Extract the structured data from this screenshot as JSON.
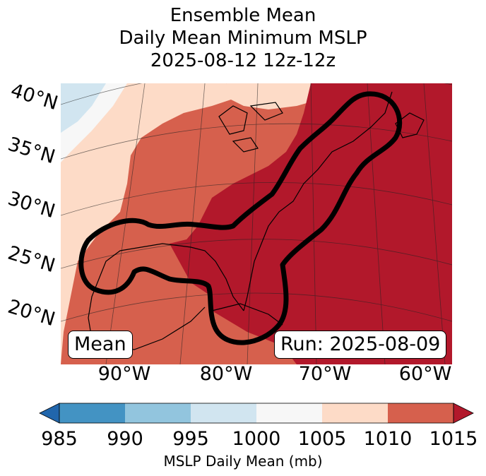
{
  "title": {
    "line1": "Ensemble Mean",
    "line2": "Daily Mean Minimum MSLP",
    "line3": "2025-08-12 12z-12z"
  },
  "map": {
    "lat_labels": [
      "40°N",
      "35°N",
      "30°N",
      "25°N",
      "20°N"
    ],
    "lon_labels": [
      "90°W",
      "80°W",
      "70°W",
      "60°W"
    ],
    "mean_box": "Mean",
    "run_box": "Run: 2025-08-09"
  },
  "colorbar": {
    "ticks": [
      "985",
      "990",
      "995",
      "1000",
      "1005",
      "1010",
      "1015"
    ],
    "colors": [
      "#2166ac",
      "#4393c3",
      "#92c5de",
      "#d1e5f0",
      "#f7f7f7",
      "#fddbc7",
      "#d6604d",
      "#b2182b"
    ],
    "label": "MSLP Daily Mean (mb)"
  },
  "legend_colors": {
    "contour": "#000000"
  }
}
